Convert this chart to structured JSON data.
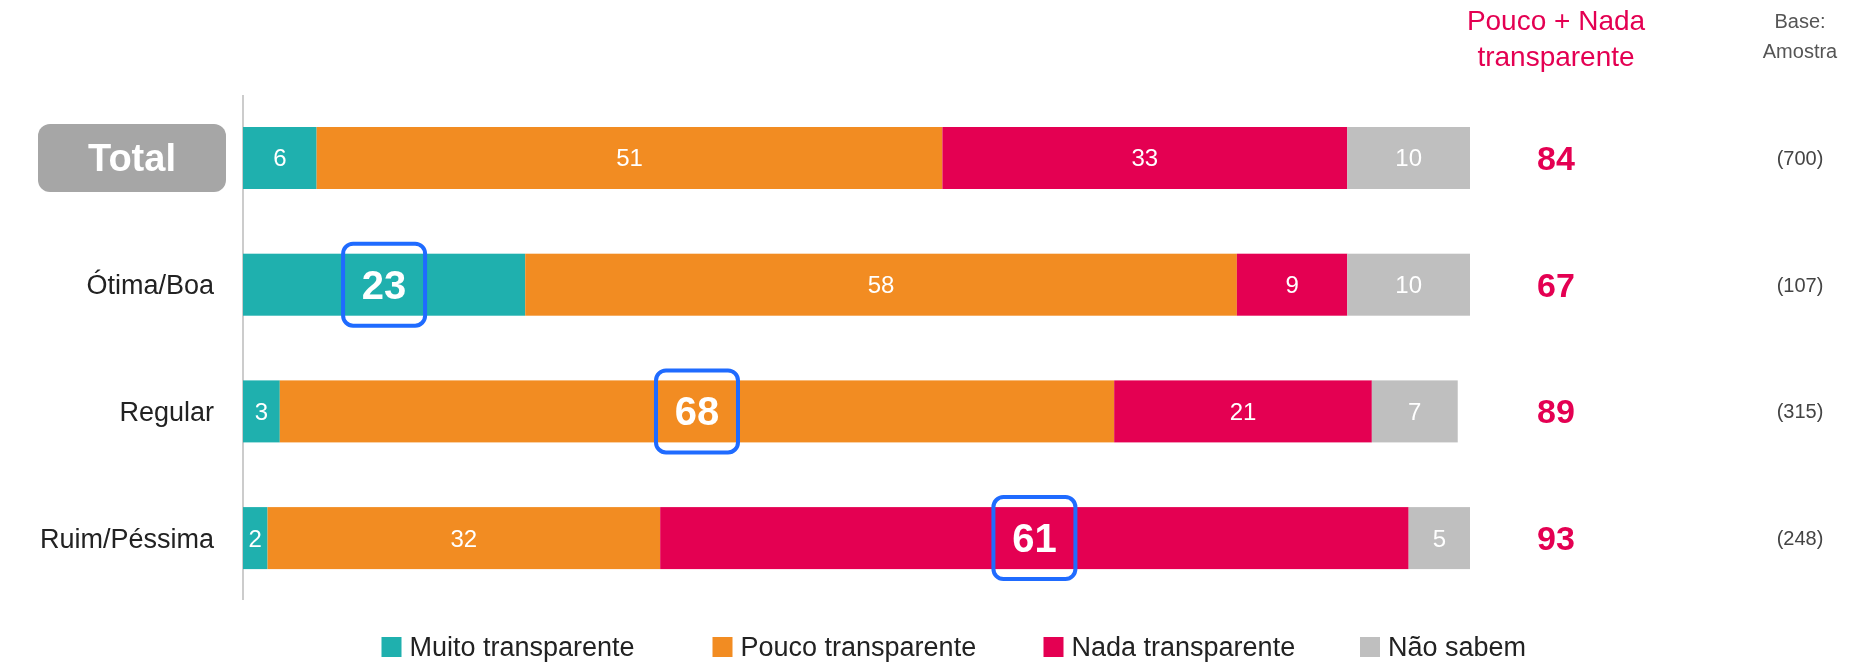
{
  "chart_data": {
    "type": "bar",
    "orientation": "horizontal",
    "stacked": true,
    "data_labels": true,
    "legend": "bottom",
    "categories": [
      "Total",
      "Ótima/Boa",
      "Regular",
      "Ruim/Péssima"
    ],
    "series": [
      {
        "name": "Muito transparente",
        "color": "#1fb0ae",
        "values": [
          6,
          23,
          3,
          2
        ]
      },
      {
        "name": "Pouco transparente",
        "color": "#f28c22",
        "values": [
          51,
          58,
          68,
          32
        ]
      },
      {
        "name": "Nada transparente",
        "color": "#e40052",
        "values": [
          33,
          9,
          21,
          61
        ]
      },
      {
        "name": "Não sabem",
        "color": "#bfbfbf",
        "values": [
          10,
          10,
          7,
          5
        ]
      }
    ],
    "annotations": [
      "Pouco + Nada transparente",
      "84",
      "67",
      "89",
      "93",
      "Base: Amostra",
      "(700)",
      "(107)",
      "(315)",
      "(248)"
    ]
  }
}
